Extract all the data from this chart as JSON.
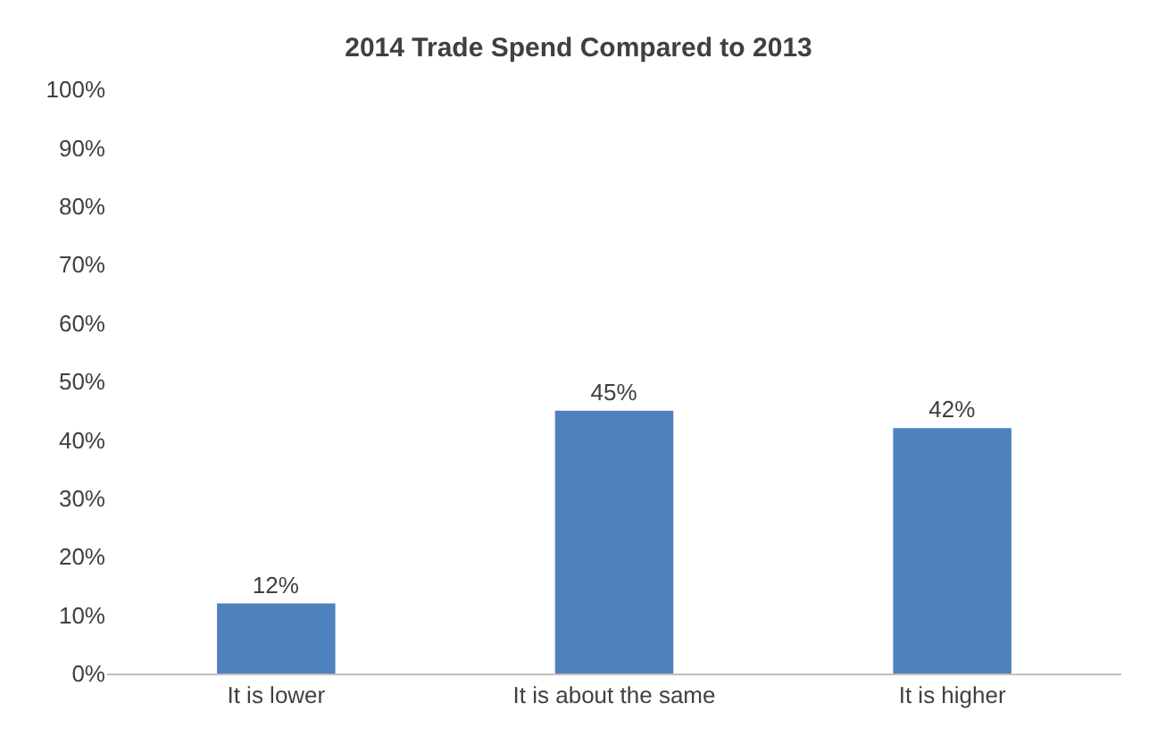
{
  "chart_data": {
    "type": "bar",
    "title": "2014 Trade Spend Compared to 2013",
    "categories": [
      "It is lower",
      "It is about the same",
      "It is higher"
    ],
    "values": [
      12,
      45,
      42
    ],
    "color": "#4f81bd",
    "value_labels": [
      "12%",
      "45%",
      "42%"
    ],
    "ylim": [
      0,
      100
    ],
    "yticks": [
      {
        "value": 0,
        "label": "0%"
      },
      {
        "value": 10,
        "label": "10%"
      },
      {
        "value": 20,
        "label": "20%"
      },
      {
        "value": 30,
        "label": "30%"
      },
      {
        "value": 40,
        "label": "40%"
      },
      {
        "value": 50,
        "label": "50%"
      },
      {
        "value": 60,
        "label": "60%"
      },
      {
        "value": 70,
        "label": "70%"
      },
      {
        "value": 80,
        "label": "80%"
      },
      {
        "value": 90,
        "label": "90%"
      },
      {
        "value": 100,
        "label": "100%"
      }
    ],
    "grid": false
  }
}
